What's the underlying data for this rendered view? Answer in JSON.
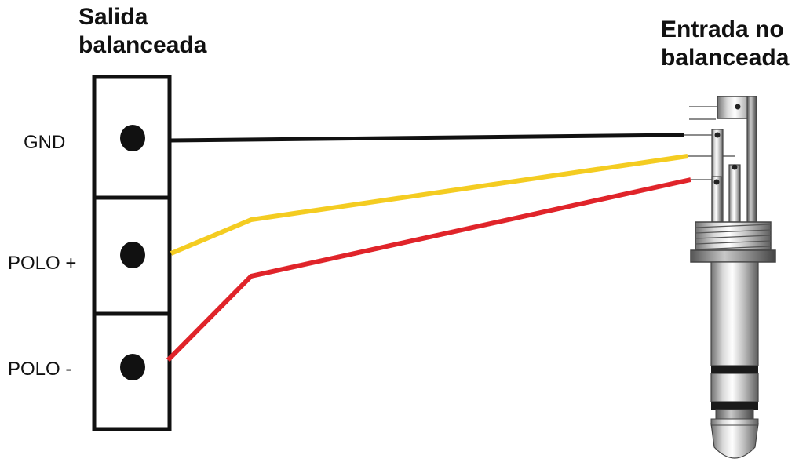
{
  "output": {
    "title_line1": "Salida",
    "title_line2": "balanceada",
    "pins": [
      "GND",
      "POLO +",
      "POLO -"
    ]
  },
  "input": {
    "title_line1": "Entrada no",
    "title_line2": "balanceada"
  },
  "wires": [
    {
      "from": "GND",
      "color": "#111111"
    },
    {
      "from": "POLO +",
      "color": "#f4cc21"
    },
    {
      "from": "POLO -",
      "color": "#e0242a"
    }
  ]
}
